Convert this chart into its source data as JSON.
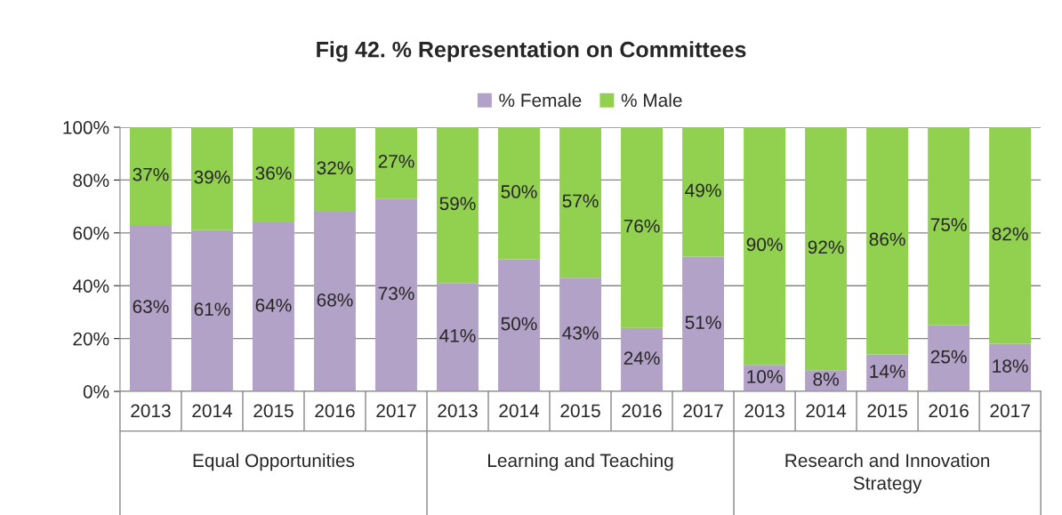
{
  "chart_data": {
    "type": "bar",
    "title": "Fig 42. % Representation on Committees",
    "categories": [
      "2013",
      "2014",
      "2015",
      "2016",
      "2017",
      "2013",
      "2014",
      "2015",
      "2016",
      "2017",
      "2013",
      "2014",
      "2015",
      "2016",
      "2017"
    ],
    "stacked": true,
    "series": [
      {
        "name": "% Female",
        "color": "#b3a2c7",
        "values": [
          63,
          61,
          64,
          68,
          73,
          41,
          50,
          43,
          24,
          51,
          10,
          8,
          14,
          25,
          18
        ],
        "value_labels": [
          "63%",
          "61%",
          "64%",
          "68%",
          "73%",
          "41%",
          "50%",
          "43%",
          "24%",
          "51%",
          "10%",
          "8%",
          "14%",
          "25%",
          "18%"
        ]
      },
      {
        "name": "% Male",
        "color": "#92d050",
        "values": [
          37,
          39,
          36,
          32,
          27,
          59,
          50,
          57,
          76,
          49,
          90,
          92,
          86,
          75,
          82
        ],
        "value_labels": [
          "37%",
          "39%",
          "36%",
          "32%",
          "27%",
          "59%",
          "50%",
          "57%",
          "76%",
          "49%",
          "90%",
          "92%",
          "86%",
          "75%",
          "82%"
        ]
      }
    ],
    "ylim": [
      0,
      100
    ],
    "yticks": [
      {
        "value": 0,
        "label": "0%"
      },
      {
        "value": 20,
        "label": "20%"
      },
      {
        "value": 40,
        "label": "40%"
      },
      {
        "value": 60,
        "label": "60%"
      },
      {
        "value": 80,
        "label": "80%"
      },
      {
        "value": 100,
        "label": "100%"
      }
    ],
    "grid": "y",
    "legend": "top",
    "annotations": [
      "Equal Opportunities",
      "Learning and Teaching",
      "Research and Innovation\nStrategy"
    ]
  }
}
